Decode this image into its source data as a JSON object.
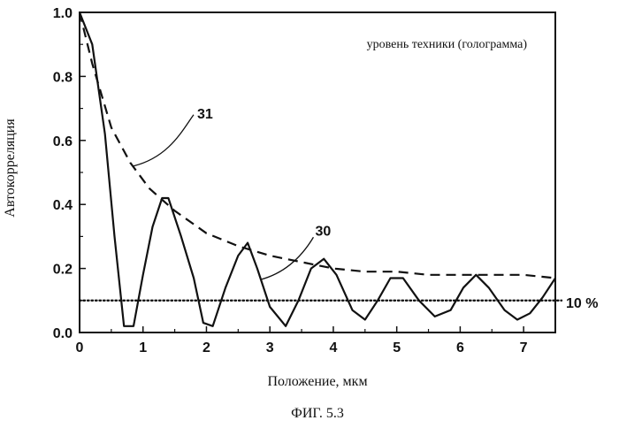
{
  "chart_data": {
    "type": "line",
    "xlabel": "Положение, мкм",
    "ylabel": "Автокорреляция",
    "figure_caption": "ФИГ. 5.3",
    "legend_text": "уровень техники (голограмма)",
    "xlim": [
      0,
      7.5
    ],
    "ylim": [
      0,
      1.0
    ],
    "x_ticks": [
      "0",
      "1",
      "2",
      "3",
      "4",
      "5",
      "6",
      "7"
    ],
    "y_ticks": [
      "0.0",
      "0.2",
      "0.4",
      "0.6",
      "0.8",
      "1.0"
    ],
    "threshold": {
      "y": 0.1,
      "label": "10 %"
    },
    "series": [
      {
        "name": "30",
        "style": "solid",
        "points": [
          [
            0.0,
            1.0
          ],
          [
            0.2,
            0.9
          ],
          [
            0.4,
            0.62
          ],
          [
            0.55,
            0.3
          ],
          [
            0.7,
            0.02
          ],
          [
            0.85,
            0.02
          ],
          [
            1.0,
            0.18
          ],
          [
            1.15,
            0.33
          ],
          [
            1.3,
            0.42
          ],
          [
            1.4,
            0.42
          ],
          [
            1.6,
            0.3
          ],
          [
            1.8,
            0.17
          ],
          [
            1.95,
            0.03
          ],
          [
            2.1,
            0.02
          ],
          [
            2.3,
            0.14
          ],
          [
            2.5,
            0.24
          ],
          [
            2.65,
            0.28
          ],
          [
            2.8,
            0.2
          ],
          [
            3.0,
            0.08
          ],
          [
            3.25,
            0.02
          ],
          [
            3.45,
            0.1
          ],
          [
            3.65,
            0.2
          ],
          [
            3.85,
            0.23
          ],
          [
            4.05,
            0.18
          ],
          [
            4.3,
            0.07
          ],
          [
            4.5,
            0.04
          ],
          [
            4.7,
            0.1
          ],
          [
            4.9,
            0.17
          ],
          [
            5.1,
            0.17
          ],
          [
            5.35,
            0.1
          ],
          [
            5.6,
            0.05
          ],
          [
            5.85,
            0.07
          ],
          [
            6.05,
            0.14
          ],
          [
            6.25,
            0.18
          ],
          [
            6.45,
            0.14
          ],
          [
            6.7,
            0.07
          ],
          [
            6.9,
            0.04
          ],
          [
            7.1,
            0.06
          ],
          [
            7.3,
            0.11
          ],
          [
            7.5,
            0.17
          ]
        ]
      },
      {
        "name": "31",
        "style": "dashed",
        "points": [
          [
            0.0,
            1.0
          ],
          [
            0.2,
            0.84
          ],
          [
            0.5,
            0.64
          ],
          [
            0.8,
            0.53
          ],
          [
            1.1,
            0.45
          ],
          [
            1.5,
            0.38
          ],
          [
            2.0,
            0.31
          ],
          [
            2.5,
            0.27
          ],
          [
            3.0,
            0.24
          ],
          [
            3.5,
            0.22
          ],
          [
            4.0,
            0.2
          ],
          [
            4.5,
            0.19
          ],
          [
            5.0,
            0.19
          ],
          [
            5.5,
            0.18
          ],
          [
            6.0,
            0.18
          ],
          [
            6.5,
            0.18
          ],
          [
            7.0,
            0.18
          ],
          [
            7.5,
            0.17
          ]
        ]
      }
    ]
  }
}
